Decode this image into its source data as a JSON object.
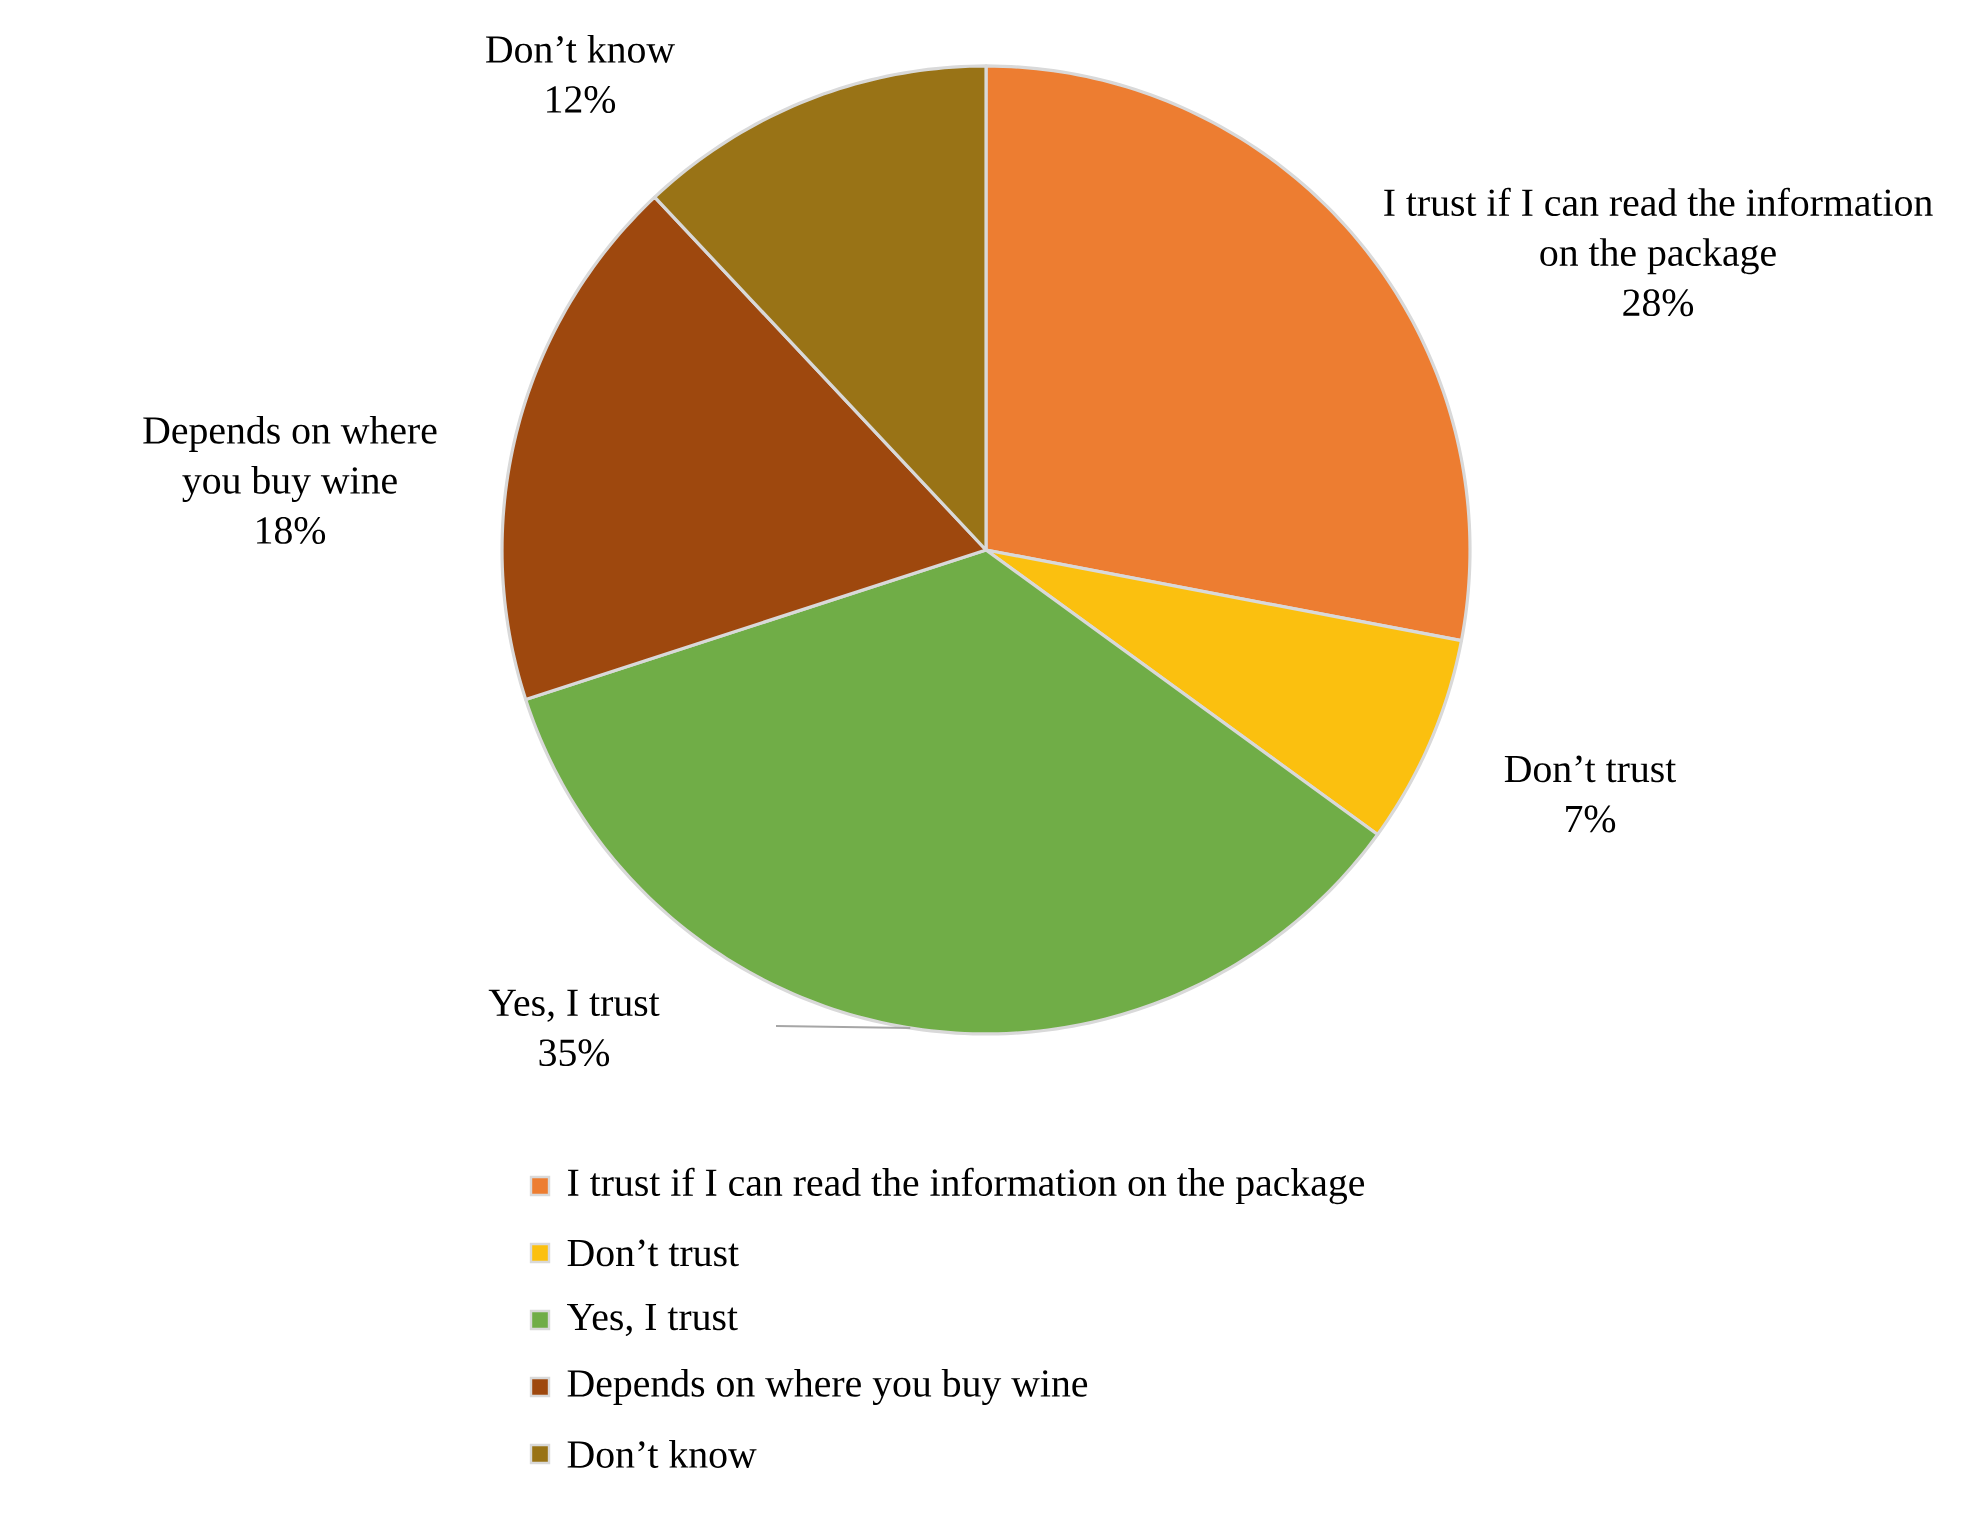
{
  "chart_data": {
    "type": "pie",
    "categories": [
      "I trust if I can read the information on the package",
      "Don’t trust",
      "Yes, I trust",
      "Depends on where you buy wine",
      "Don’t know"
    ],
    "values": [
      28,
      7,
      35,
      18,
      12
    ],
    "value_labels": [
      "28%",
      "7%",
      "35%",
      "18%",
      "12%"
    ],
    "colors": [
      "#ed7d31",
      "#fbc00f",
      "#70ad47",
      "#9e480e",
      "#997316"
    ],
    "legend": "bottom"
  }
}
